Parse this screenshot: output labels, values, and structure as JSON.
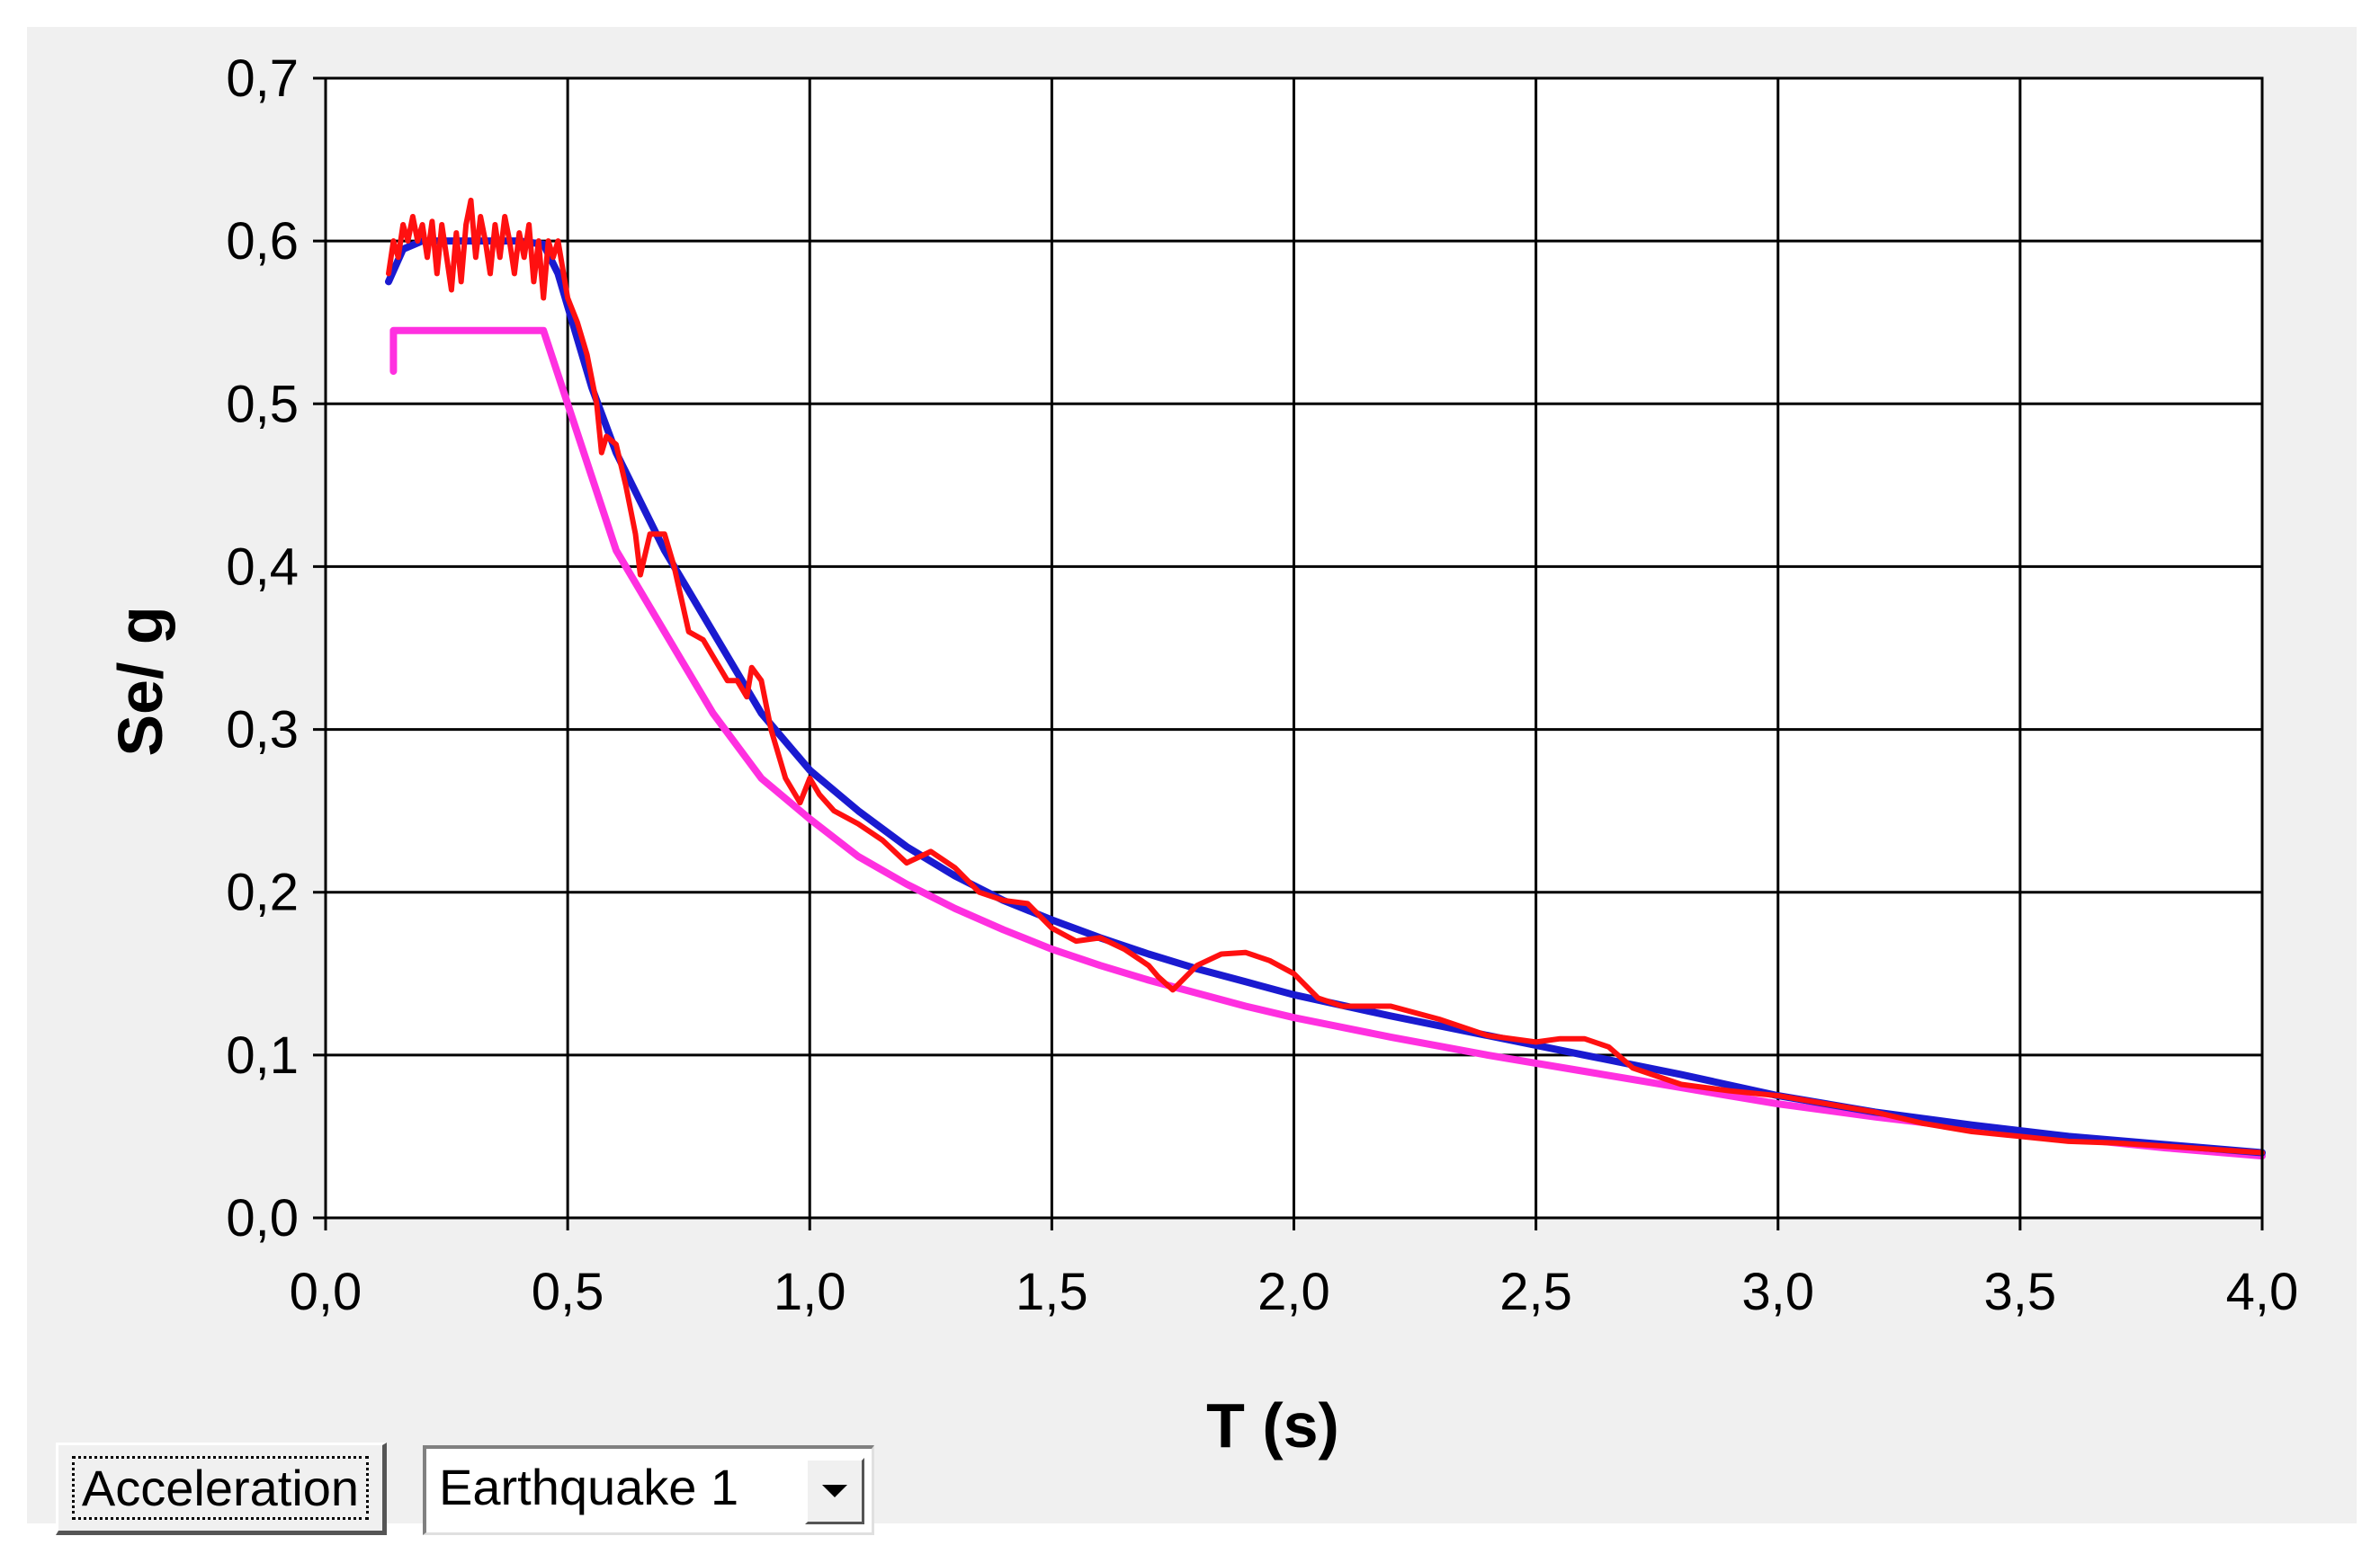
{
  "chart_data": {
    "type": "line",
    "title": "",
    "xlabel": "T (s)",
    "ylabel": "Se/ g",
    "xlim": [
      0.0,
      4.0
    ],
    "ylim": [
      0.0,
      0.7
    ],
    "x_ticks": [
      "0,0",
      "0,5",
      "1,0",
      "1,5",
      "2,0",
      "2,5",
      "3,0",
      "3,5",
      "4,0"
    ],
    "y_ticks": [
      "0,0",
      "0,1",
      "0,2",
      "0,3",
      "0,4",
      "0,5",
      "0,6",
      "0,7"
    ],
    "grid": true,
    "series": [
      {
        "color": "#1a1ad0",
        "points": [
          [
            0.13,
            0.575
          ],
          [
            0.16,
            0.595
          ],
          [
            0.2,
            0.6
          ],
          [
            0.3,
            0.6
          ],
          [
            0.4,
            0.6
          ],
          [
            0.45,
            0.598
          ],
          [
            0.48,
            0.58
          ],
          [
            0.5,
            0.56
          ],
          [
            0.55,
            0.51
          ],
          [
            0.6,
            0.47
          ],
          [
            0.7,
            0.41
          ],
          [
            0.8,
            0.36
          ],
          [
            0.9,
            0.31
          ],
          [
            1.0,
            0.275
          ],
          [
            1.1,
            0.25
          ],
          [
            1.2,
            0.228
          ],
          [
            1.3,
            0.21
          ],
          [
            1.4,
            0.195
          ],
          [
            1.5,
            0.183
          ],
          [
            1.6,
            0.172
          ],
          [
            1.7,
            0.162
          ],
          [
            1.8,
            0.153
          ],
          [
            1.9,
            0.145
          ],
          [
            2.0,
            0.137
          ],
          [
            2.2,
            0.124
          ],
          [
            2.4,
            0.112
          ],
          [
            2.6,
            0.1
          ],
          [
            2.8,
            0.088
          ],
          [
            3.0,
            0.075
          ],
          [
            3.2,
            0.065
          ],
          [
            3.4,
            0.057
          ],
          [
            3.6,
            0.05
          ],
          [
            3.8,
            0.045
          ],
          [
            4.0,
            0.04
          ]
        ]
      },
      {
        "color": "#ff1010",
        "points": [
          [
            0.13,
            0.58
          ],
          [
            0.14,
            0.6
          ],
          [
            0.15,
            0.59
          ],
          [
            0.16,
            0.61
          ],
          [
            0.17,
            0.6
          ],
          [
            0.18,
            0.615
          ],
          [
            0.19,
            0.6
          ],
          [
            0.2,
            0.61
          ],
          [
            0.21,
            0.59
          ],
          [
            0.22,
            0.612
          ],
          [
            0.23,
            0.58
          ],
          [
            0.24,
            0.61
          ],
          [
            0.25,
            0.59
          ],
          [
            0.26,
            0.57
          ],
          [
            0.27,
            0.605
          ],
          [
            0.28,
            0.575
          ],
          [
            0.29,
            0.61
          ],
          [
            0.3,
            0.625
          ],
          [
            0.31,
            0.59
          ],
          [
            0.32,
            0.615
          ],
          [
            0.33,
            0.6
          ],
          [
            0.34,
            0.58
          ],
          [
            0.35,
            0.61
          ],
          [
            0.36,
            0.59
          ],
          [
            0.37,
            0.615
          ],
          [
            0.38,
            0.6
          ],
          [
            0.39,
            0.58
          ],
          [
            0.4,
            0.605
          ],
          [
            0.41,
            0.59
          ],
          [
            0.42,
            0.61
          ],
          [
            0.43,
            0.575
          ],
          [
            0.44,
            0.6
          ],
          [
            0.45,
            0.565
          ],
          [
            0.46,
            0.6
          ],
          [
            0.47,
            0.59
          ],
          [
            0.48,
            0.6
          ],
          [
            0.5,
            0.565
          ],
          [
            0.52,
            0.55
          ],
          [
            0.54,
            0.53
          ],
          [
            0.56,
            0.5
          ],
          [
            0.57,
            0.47
          ],
          [
            0.58,
            0.48
          ],
          [
            0.6,
            0.475
          ],
          [
            0.62,
            0.45
          ],
          [
            0.64,
            0.42
          ],
          [
            0.65,
            0.395
          ],
          [
            0.67,
            0.42
          ],
          [
            0.7,
            0.42
          ],
          [
            0.72,
            0.4
          ],
          [
            0.75,
            0.36
          ],
          [
            0.78,
            0.355
          ],
          [
            0.8,
            0.345
          ],
          [
            0.83,
            0.33
          ],
          [
            0.85,
            0.33
          ],
          [
            0.87,
            0.32
          ],
          [
            0.88,
            0.338
          ],
          [
            0.9,
            0.33
          ],
          [
            0.92,
            0.3
          ],
          [
            0.95,
            0.27
          ],
          [
            0.98,
            0.255
          ],
          [
            1.0,
            0.27
          ],
          [
            1.02,
            0.26
          ],
          [
            1.05,
            0.25
          ],
          [
            1.1,
            0.242
          ],
          [
            1.15,
            0.232
          ],
          [
            1.2,
            0.218
          ],
          [
            1.25,
            0.225
          ],
          [
            1.3,
            0.215
          ],
          [
            1.35,
            0.2
          ],
          [
            1.4,
            0.195
          ],
          [
            1.45,
            0.193
          ],
          [
            1.5,
            0.178
          ],
          [
            1.55,
            0.17
          ],
          [
            1.6,
            0.172
          ],
          [
            1.65,
            0.165
          ],
          [
            1.7,
            0.155
          ],
          [
            1.72,
            0.148
          ],
          [
            1.75,
            0.14
          ],
          [
            1.8,
            0.155
          ],
          [
            1.85,
            0.162
          ],
          [
            1.9,
            0.163
          ],
          [
            1.95,
            0.158
          ],
          [
            2.0,
            0.15
          ],
          [
            2.05,
            0.135
          ],
          [
            2.1,
            0.13
          ],
          [
            2.2,
            0.13
          ],
          [
            2.3,
            0.122
          ],
          [
            2.4,
            0.112
          ],
          [
            2.5,
            0.108
          ],
          [
            2.55,
            0.11
          ],
          [
            2.6,
            0.11
          ],
          [
            2.65,
            0.105
          ],
          [
            2.7,
            0.092
          ],
          [
            2.8,
            0.082
          ],
          [
            2.9,
            0.078
          ],
          [
            3.0,
            0.075
          ],
          [
            3.1,
            0.07
          ],
          [
            3.2,
            0.065
          ],
          [
            3.3,
            0.058
          ],
          [
            3.4,
            0.053
          ],
          [
            3.5,
            0.05
          ],
          [
            3.6,
            0.047
          ],
          [
            3.7,
            0.046
          ],
          [
            3.8,
            0.044
          ],
          [
            3.9,
            0.042
          ],
          [
            4.0,
            0.04
          ]
        ]
      },
      {
        "color": "#ff30e0",
        "points": [
          [
            0.14,
            0.52
          ],
          [
            0.14,
            0.545
          ],
          [
            0.2,
            0.545
          ],
          [
            0.3,
            0.545
          ],
          [
            0.45,
            0.545
          ],
          [
            0.5,
            0.5
          ],
          [
            0.55,
            0.455
          ],
          [
            0.6,
            0.41
          ],
          [
            0.7,
            0.36
          ],
          [
            0.8,
            0.31
          ],
          [
            0.9,
            0.27
          ],
          [
            1.0,
            0.245
          ],
          [
            1.1,
            0.222
          ],
          [
            1.2,
            0.205
          ],
          [
            1.3,
            0.19
          ],
          [
            1.4,
            0.177
          ],
          [
            1.5,
            0.165
          ],
          [
            1.6,
            0.155
          ],
          [
            1.7,
            0.146
          ],
          [
            1.8,
            0.138
          ],
          [
            1.9,
            0.13
          ],
          [
            2.0,
            0.123
          ],
          [
            2.2,
            0.111
          ],
          [
            2.4,
            0.1
          ],
          [
            2.6,
            0.09
          ],
          [
            2.8,
            0.08
          ],
          [
            3.0,
            0.07
          ],
          [
            3.2,
            0.062
          ],
          [
            3.4,
            0.055
          ],
          [
            3.6,
            0.049
          ],
          [
            3.8,
            0.043
          ],
          [
            4.0,
            0.038
          ]
        ]
      }
    ]
  },
  "controls": {
    "acceleration_button": "Acceleration",
    "earthquake_select": "Earthquake 1"
  },
  "icons": {
    "dropdown": "chevron-down-icon"
  }
}
